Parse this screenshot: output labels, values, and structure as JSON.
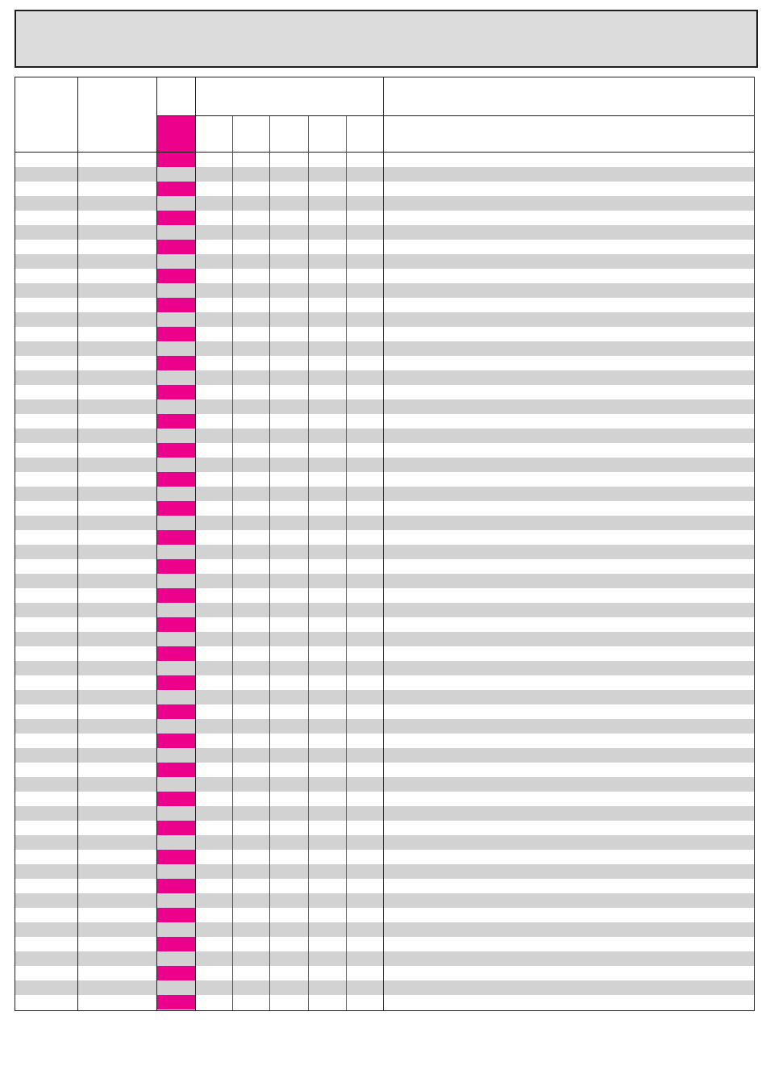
{
  "colors": {
    "accent": "#ec008c",
    "shade": "#d2d2d2",
    "title_box": "#dcdcdc",
    "border": "#1e1e1e"
  },
  "table": {
    "row_count": 59,
    "columns": [
      {
        "name": "col-1"
      },
      {
        "name": "col-2"
      },
      {
        "name": "col-3-accent"
      },
      {
        "name": "col-4"
      },
      {
        "name": "col-5"
      },
      {
        "name": "col-6"
      },
      {
        "name": "col-7"
      },
      {
        "name": "col-8-wide"
      }
    ]
  }
}
